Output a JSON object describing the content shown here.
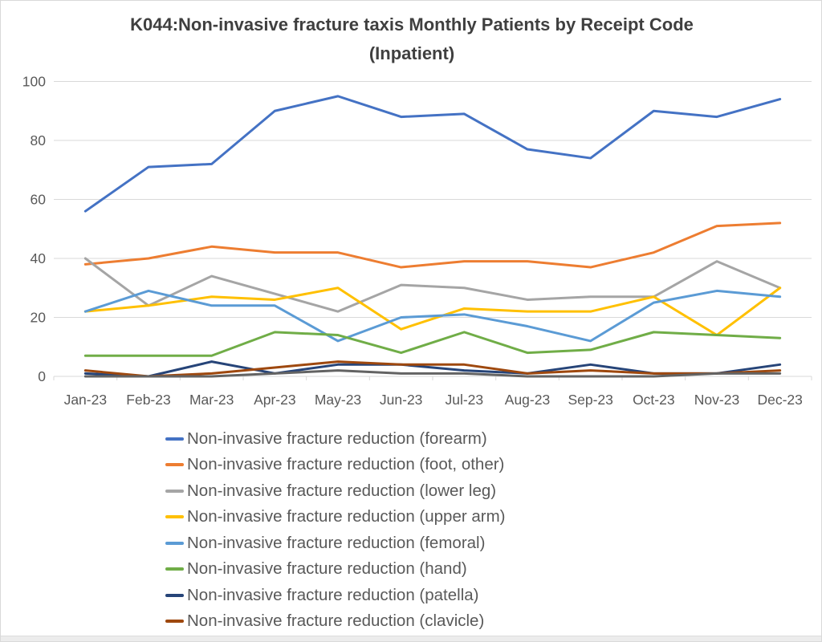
{
  "chart": {
    "title_line1": "K044:Non-invasive fracture taxis Monthly Patients by Receipt Code",
    "title_line2": "(Inpatient)",
    "text_color": "#595959",
    "grid_color": "#d9d9d9"
  },
  "chart_data": {
    "type": "line",
    "title": "K044:Non-invasive fracture taxis Monthly Patients by Receipt Code (Inpatient)",
    "categories": [
      "Jan-23",
      "Feb-23",
      "Mar-23",
      "Apr-23",
      "May-23",
      "Jun-23",
      "Jul-23",
      "Aug-23",
      "Sep-23",
      "Oct-23",
      "Nov-23",
      "Dec-23"
    ],
    "ylim": [
      0,
      100
    ],
    "y_ticks": [
      0,
      20,
      40,
      60,
      80,
      100
    ],
    "grid": true,
    "legend_position": "bottom",
    "series": [
      {
        "slug": "forearm",
        "name": "Non-invasive fracture reduction (forearm)",
        "color": "#4472c4",
        "in_legend": true,
        "values": [
          56,
          71,
          72,
          90,
          95,
          88,
          89,
          77,
          74,
          90,
          88,
          94
        ]
      },
      {
        "slug": "foot-other",
        "name": "Non-invasive fracture reduction (foot, other)",
        "color": "#ed7d31",
        "in_legend": true,
        "values": [
          38,
          40,
          44,
          42,
          42,
          37,
          39,
          39,
          37,
          42,
          51,
          52
        ]
      },
      {
        "slug": "lower-leg",
        "name": "Non-invasive fracture reduction (lower leg)",
        "color": "#a5a5a5",
        "in_legend": true,
        "values": [
          40,
          24,
          34,
          28,
          22,
          31,
          30,
          26,
          27,
          27,
          39,
          30
        ]
      },
      {
        "slug": "upper-arm",
        "name": "Non-invasive fracture reduction (upper arm)",
        "color": "#ffc000",
        "in_legend": true,
        "values": [
          22,
          24,
          27,
          26,
          30,
          16,
          23,
          22,
          22,
          27,
          14,
          30
        ]
      },
      {
        "slug": "femoral",
        "name": "Non-invasive fracture reduction (femoral)",
        "color": "#5b9bd5",
        "in_legend": true,
        "values": [
          22,
          29,
          24,
          24,
          12,
          20,
          21,
          17,
          12,
          25,
          29,
          27
        ]
      },
      {
        "slug": "hand",
        "name": "Non-invasive fracture reduction (hand)",
        "color": "#70ad47",
        "in_legend": true,
        "values": [
          7,
          7,
          7,
          15,
          14,
          8,
          15,
          8,
          9,
          15,
          14,
          13
        ]
      },
      {
        "slug": "patella",
        "name": "Non-invasive fracture reduction (patella)",
        "color": "#264478",
        "in_legend": true,
        "values": [
          1,
          0,
          5,
          1,
          4,
          4,
          2,
          1,
          4,
          1,
          1,
          4
        ]
      },
      {
        "slug": "clavicle",
        "name": "Non-invasive fracture reduction (clavicle)",
        "color": "#9e480e",
        "in_legend": true,
        "values": [
          2,
          0,
          1,
          3,
          5,
          4,
          4,
          1,
          2,
          1,
          1,
          2
        ]
      },
      {
        "slug": "unlabeled",
        "name": "",
        "color": "#636363",
        "in_legend": false,
        "values": [
          0,
          0,
          0,
          1,
          2,
          1,
          1,
          0,
          0,
          0,
          1,
          1
        ]
      }
    ]
  }
}
